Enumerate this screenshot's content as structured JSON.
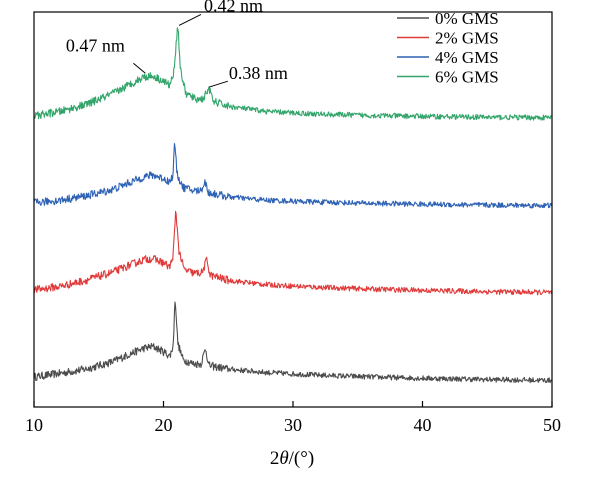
{
  "chart_data": {
    "type": "line",
    "title": "",
    "xlabel": "2θ/(°)",
    "xlabel_parts": {
      "prefix": "2",
      "symbol": "θ",
      "suffix": "/(°)"
    },
    "ylabel": "",
    "xlim": [
      10,
      50
    ],
    "xticks": [
      10,
      20,
      30,
      40,
      50
    ],
    "y_axis_ticks": false,
    "grid": false,
    "legend_position": "top-right",
    "stacked_offset": true,
    "series": [
      {
        "name": "0% GMS",
        "color": "#4d4d4d",
        "baseline": 0.0,
        "points": [
          [
            10,
            0.07
          ],
          [
            12,
            0.11
          ],
          [
            14,
            0.16
          ],
          [
            16,
            0.24
          ],
          [
            17.5,
            0.34
          ],
          [
            18.5,
            0.4
          ],
          [
            19.2,
            0.42
          ],
          [
            20.0,
            0.36
          ],
          [
            20.5,
            0.31
          ],
          [
            20.75,
            0.43
          ],
          [
            20.9,
            1.0
          ],
          [
            21.1,
            0.46
          ],
          [
            21.5,
            0.27
          ],
          [
            22.3,
            0.22
          ],
          [
            22.9,
            0.22
          ],
          [
            23.25,
            0.4
          ],
          [
            23.5,
            0.2
          ],
          [
            25,
            0.16
          ],
          [
            28,
            0.12
          ],
          [
            32,
            0.09
          ],
          [
            36,
            0.07
          ],
          [
            40,
            0.055
          ],
          [
            45,
            0.04
          ],
          [
            50,
            0.03
          ]
        ]
      },
      {
        "name": "2% GMS",
        "color": "#e03a3a",
        "baseline": 1.0,
        "points": [
          [
            10,
            1.07
          ],
          [
            12,
            1.11
          ],
          [
            14,
            1.18
          ],
          [
            16,
            1.27
          ],
          [
            17.5,
            1.36
          ],
          [
            18.5,
            1.42
          ],
          [
            19.2,
            1.43
          ],
          [
            20.0,
            1.38
          ],
          [
            20.5,
            1.33
          ],
          [
            20.75,
            1.48
          ],
          [
            20.95,
            1.98
          ],
          [
            21.2,
            1.52
          ],
          [
            21.6,
            1.3
          ],
          [
            22.4,
            1.26
          ],
          [
            23.0,
            1.27
          ],
          [
            23.35,
            1.42
          ],
          [
            23.6,
            1.24
          ],
          [
            25,
            1.18
          ],
          [
            28,
            1.13
          ],
          [
            32,
            1.1
          ],
          [
            36,
            1.08
          ],
          [
            40,
            1.065
          ],
          [
            45,
            1.05
          ],
          [
            50,
            1.04
          ]
        ]
      },
      {
        "name": "4% GMS",
        "color": "#2e62b4",
        "baseline": 2.0,
        "points": [
          [
            10,
            2.07
          ],
          [
            12,
            2.1
          ],
          [
            14,
            2.15
          ],
          [
            16,
            2.22
          ],
          [
            17.5,
            2.31
          ],
          [
            18.5,
            2.37
          ],
          [
            19.2,
            2.39
          ],
          [
            20.0,
            2.35
          ],
          [
            20.5,
            2.31
          ],
          [
            20.75,
            2.4
          ],
          [
            20.85,
            2.79
          ],
          [
            21.05,
            2.4
          ],
          [
            21.5,
            2.25
          ],
          [
            22.3,
            2.21
          ],
          [
            22.9,
            2.21
          ],
          [
            23.2,
            2.32
          ],
          [
            23.45,
            2.19
          ],
          [
            25,
            2.14
          ],
          [
            28,
            2.1
          ],
          [
            32,
            2.08
          ],
          [
            36,
            2.065
          ],
          [
            40,
            2.055
          ],
          [
            45,
            2.045
          ],
          [
            50,
            2.04
          ]
        ]
      },
      {
        "name": "6% GMS",
        "color": "#33a56b",
        "baseline": 3.0,
        "points": [
          [
            10,
            3.07
          ],
          [
            12,
            3.12
          ],
          [
            14,
            3.2
          ],
          [
            16,
            3.32
          ],
          [
            17.5,
            3.44
          ],
          [
            18.5,
            3.52
          ],
          [
            19.2,
            3.53
          ],
          [
            20.0,
            3.47
          ],
          [
            20.5,
            3.42
          ],
          [
            20.8,
            3.58
          ],
          [
            21.1,
            4.13
          ],
          [
            21.3,
            3.62
          ],
          [
            21.7,
            3.33
          ],
          [
            22.5,
            3.26
          ],
          [
            23.1,
            3.27
          ],
          [
            23.5,
            3.4
          ],
          [
            23.8,
            3.24
          ],
          [
            25,
            3.18
          ],
          [
            28,
            3.12
          ],
          [
            32,
            3.09
          ],
          [
            36,
            3.075
          ],
          [
            40,
            3.065
          ],
          [
            45,
            3.055
          ],
          [
            50,
            3.05
          ]
        ]
      }
    ],
    "annotations": [
      {
        "text": "0.47 nm",
        "x": 18.6,
        "y": 3.56
      },
      {
        "text": "0.42 nm",
        "x": 21.2,
        "y": 4.11
      },
      {
        "text": "0.38 nm",
        "x": 23.5,
        "y": 3.4
      }
    ]
  }
}
